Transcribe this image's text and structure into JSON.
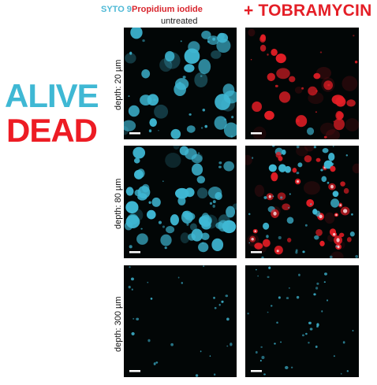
{
  "legend": {
    "syto": "SYTO 9",
    "pi": "Propidium iodide"
  },
  "conditions": {
    "untreated": "untreated",
    "tobramycin": "+ TOBRAMYCIN"
  },
  "labels": {
    "alive": "ALIVE",
    "dead": "DEAD"
  },
  "rows": [
    {
      "depth": "depth: 20 µm"
    },
    {
      "depth": "depth: 80 µm"
    },
    {
      "depth": "depth: 300 µm"
    }
  ],
  "colors": {
    "syto": "#3fb8d4",
    "pi": "#e41e26",
    "panel_bg": "#020606",
    "scale_bar": "#ffffff"
  }
}
